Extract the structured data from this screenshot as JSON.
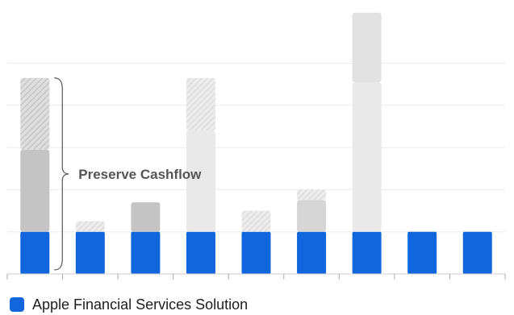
{
  "chart_data": {
    "type": "bar",
    "stacked": true,
    "categories": [
      "",
      "",
      "",
      "",
      "",
      "",
      "",
      "",
      ""
    ],
    "series": [
      {
        "name": "Apple Financial Services Solution",
        "color": "#1166dd",
        "style": "solid",
        "values": [
          20,
          20,
          20,
          20,
          20,
          20,
          20,
          20,
          20
        ]
      },
      {
        "color": "#c4c4c4",
        "style": "solid",
        "values": [
          39,
          0,
          14,
          0,
          0,
          0,
          0,
          0,
          0
        ]
      },
      {
        "color": "#e9e9e9",
        "style": "solid",
        "values": [
          0,
          0,
          0,
          48,
          0,
          0,
          71,
          0,
          0
        ]
      },
      {
        "color": "#d6d6d6",
        "style": "solid",
        "values": [
          0,
          0,
          0,
          0,
          0,
          15,
          0,
          0,
          0
        ]
      },
      {
        "color": "#d2d2d2",
        "style": "hatched",
        "values": [
          34,
          0,
          0,
          0,
          0,
          0,
          0,
          0,
          0
        ]
      },
      {
        "color": "#e6e6e6",
        "style": "hatched",
        "values": [
          0,
          5,
          0,
          25,
          10,
          5,
          0,
          0,
          0
        ]
      },
      {
        "color": "#e2e2e2",
        "style": "solid",
        "values": [
          0,
          0,
          0,
          0,
          0,
          0,
          33,
          0,
          0
        ]
      }
    ],
    "ylim": [
      0,
      130
    ],
    "grid": true,
    "annotation": {
      "text": "Preserve Cashflow",
      "bracket_over_category_index": 0,
      "from_value": 0,
      "to_value": 93
    },
    "legend": {
      "position": "bottom-left",
      "entries": [
        "Apple Financial Services Solution"
      ]
    }
  }
}
